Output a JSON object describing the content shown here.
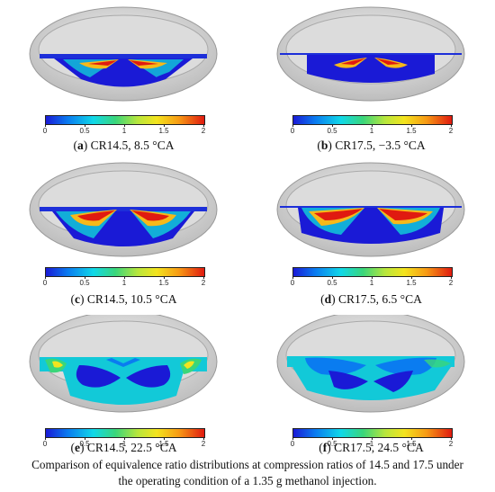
{
  "colorbar": {
    "ticks": [
      "0",
      "0.5",
      "1",
      "1.5",
      "2"
    ],
    "range": [
      0,
      2
    ],
    "colors": [
      "#1a1ad6",
      "#0a7cf0",
      "#10d8e8",
      "#3ad67a",
      "#b8e63c",
      "#f3e41e",
      "#f79a14",
      "#e01a10"
    ]
  },
  "panels": [
    {
      "letter": "a",
      "caption": "CR14.5, 8.5 °CA"
    },
    {
      "letter": "b",
      "caption": "CR17.5, −3.5 °CA"
    },
    {
      "letter": "c",
      "caption": "CR14.5, 10.5 °CA"
    },
    {
      "letter": "d",
      "caption": "CR17.5, 6.5 °CA"
    },
    {
      "letter": "e",
      "caption": "CR14.5, 22.5 °CA"
    },
    {
      "letter": "f",
      "caption": "CR17.5, 24.5 °CA"
    }
  ],
  "caption": {
    "line1": "Comparison of equivalence ratio distributions at compression ratios of 14.5 and 17.5 under",
    "line2": "the operating condition of a 1.35 g methanol injection."
  }
}
